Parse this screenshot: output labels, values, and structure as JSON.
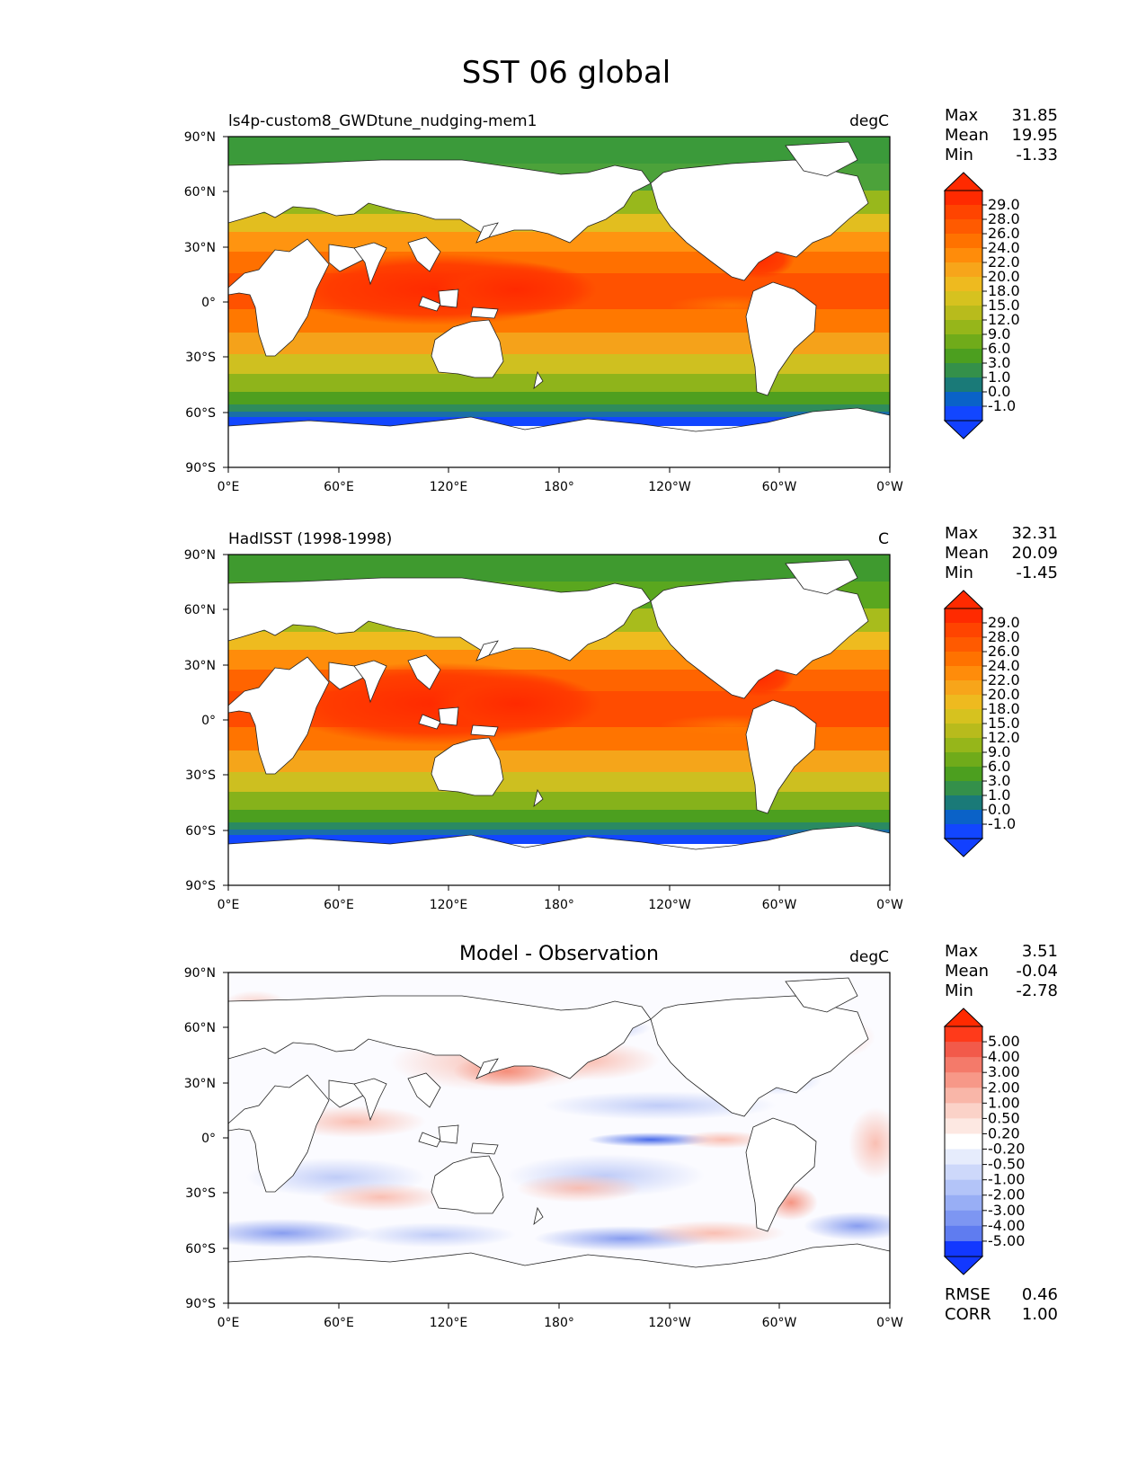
{
  "title": "SST 06 global",
  "axes": {
    "lat_ticks": [
      "90°N",
      "60°N",
      "30°N",
      "0°",
      "30°S",
      "60°S",
      "90°S"
    ],
    "lon_ticks": [
      "0°E",
      "60°E",
      "120°E",
      "180°",
      "120°W",
      "60°W",
      "0°W"
    ]
  },
  "stat_labels": {
    "max": "Max",
    "mean": "Mean",
    "min": "Min",
    "rmse": "RMSE",
    "corr": "CORR"
  },
  "panels": [
    {
      "left_title": "ls4p-custom8_GWDtune_nudging-mem1",
      "center_title": "",
      "units": "degC",
      "stats": {
        "max": "31.85",
        "mean": "19.95",
        "min": "-1.33"
      },
      "colorbar": {
        "labels": [
          "29.0",
          "28.0",
          "26.0",
          "24.0",
          "22.0",
          "20.0",
          "18.0",
          "15.0",
          "12.0",
          "9.0",
          "6.0",
          "3.0",
          "1.0",
          "0.0",
          "-1.0"
        ],
        "colors": [
          "#ff2a00",
          "#ff4400",
          "#ff5a00",
          "#ff7200",
          "#ff8c0a",
          "#f7a51a",
          "#eeba1f",
          "#d6c21f",
          "#b8bb1c",
          "#96b61a",
          "#70ab1a",
          "#4c9f1f",
          "#34904a",
          "#1a7a78",
          "#0a62c8",
          "#1246ff"
        ],
        "arrow_top": "#ff2a00",
        "arrow_bottom": "#1240ff"
      }
    },
    {
      "left_title": "HadISST (1998-1998)",
      "center_title": "",
      "units": "C",
      "stats": {
        "max": "32.31",
        "mean": "20.09",
        "min": "-1.45"
      },
      "colorbar": {
        "labels": [
          "29.0",
          "28.0",
          "26.0",
          "24.0",
          "22.0",
          "20.0",
          "18.0",
          "15.0",
          "12.0",
          "9.0",
          "6.0",
          "3.0",
          "1.0",
          "0.0",
          "-1.0"
        ],
        "colors": [
          "#ff2a00",
          "#ff4400",
          "#ff5a00",
          "#ff7200",
          "#ff8c0a",
          "#f7a51a",
          "#eeba1f",
          "#d6c21f",
          "#b8bb1c",
          "#96b61a",
          "#70ab1a",
          "#4c9f1f",
          "#34904a",
          "#1a7a78",
          "#0a62c8",
          "#1246ff"
        ],
        "arrow_top": "#ff2a00",
        "arrow_bottom": "#1240ff"
      }
    },
    {
      "left_title": "",
      "center_title": "Model - Observation",
      "units": "degC",
      "stats": {
        "max": "3.51",
        "mean": "-0.04",
        "min": "-2.78",
        "rmse": "0.46",
        "corr": "1.00"
      },
      "colorbar": {
        "labels": [
          "5.00",
          "4.00",
          "3.00",
          "2.00",
          "1.00",
          "0.50",
          "0.20",
          "-0.20",
          "-0.50",
          "-1.00",
          "-2.00",
          "-3.00",
          "-4.00",
          "-5.00"
        ],
        "colors": [
          "#ff3a1a",
          "#f25a4a",
          "#f47a6a",
          "#f79888",
          "#f9b6a8",
          "#fbd2c8",
          "#fde8e2",
          "#ffffff",
          "#e6ecfc",
          "#cdd8fa",
          "#b3c4f8",
          "#98aef5",
          "#7d96f2",
          "#5f7cf0",
          "#1238ff"
        ],
        "arrow_top": "#ff2a00",
        "arrow_bottom": "#1238ff"
      }
    }
  ]
}
